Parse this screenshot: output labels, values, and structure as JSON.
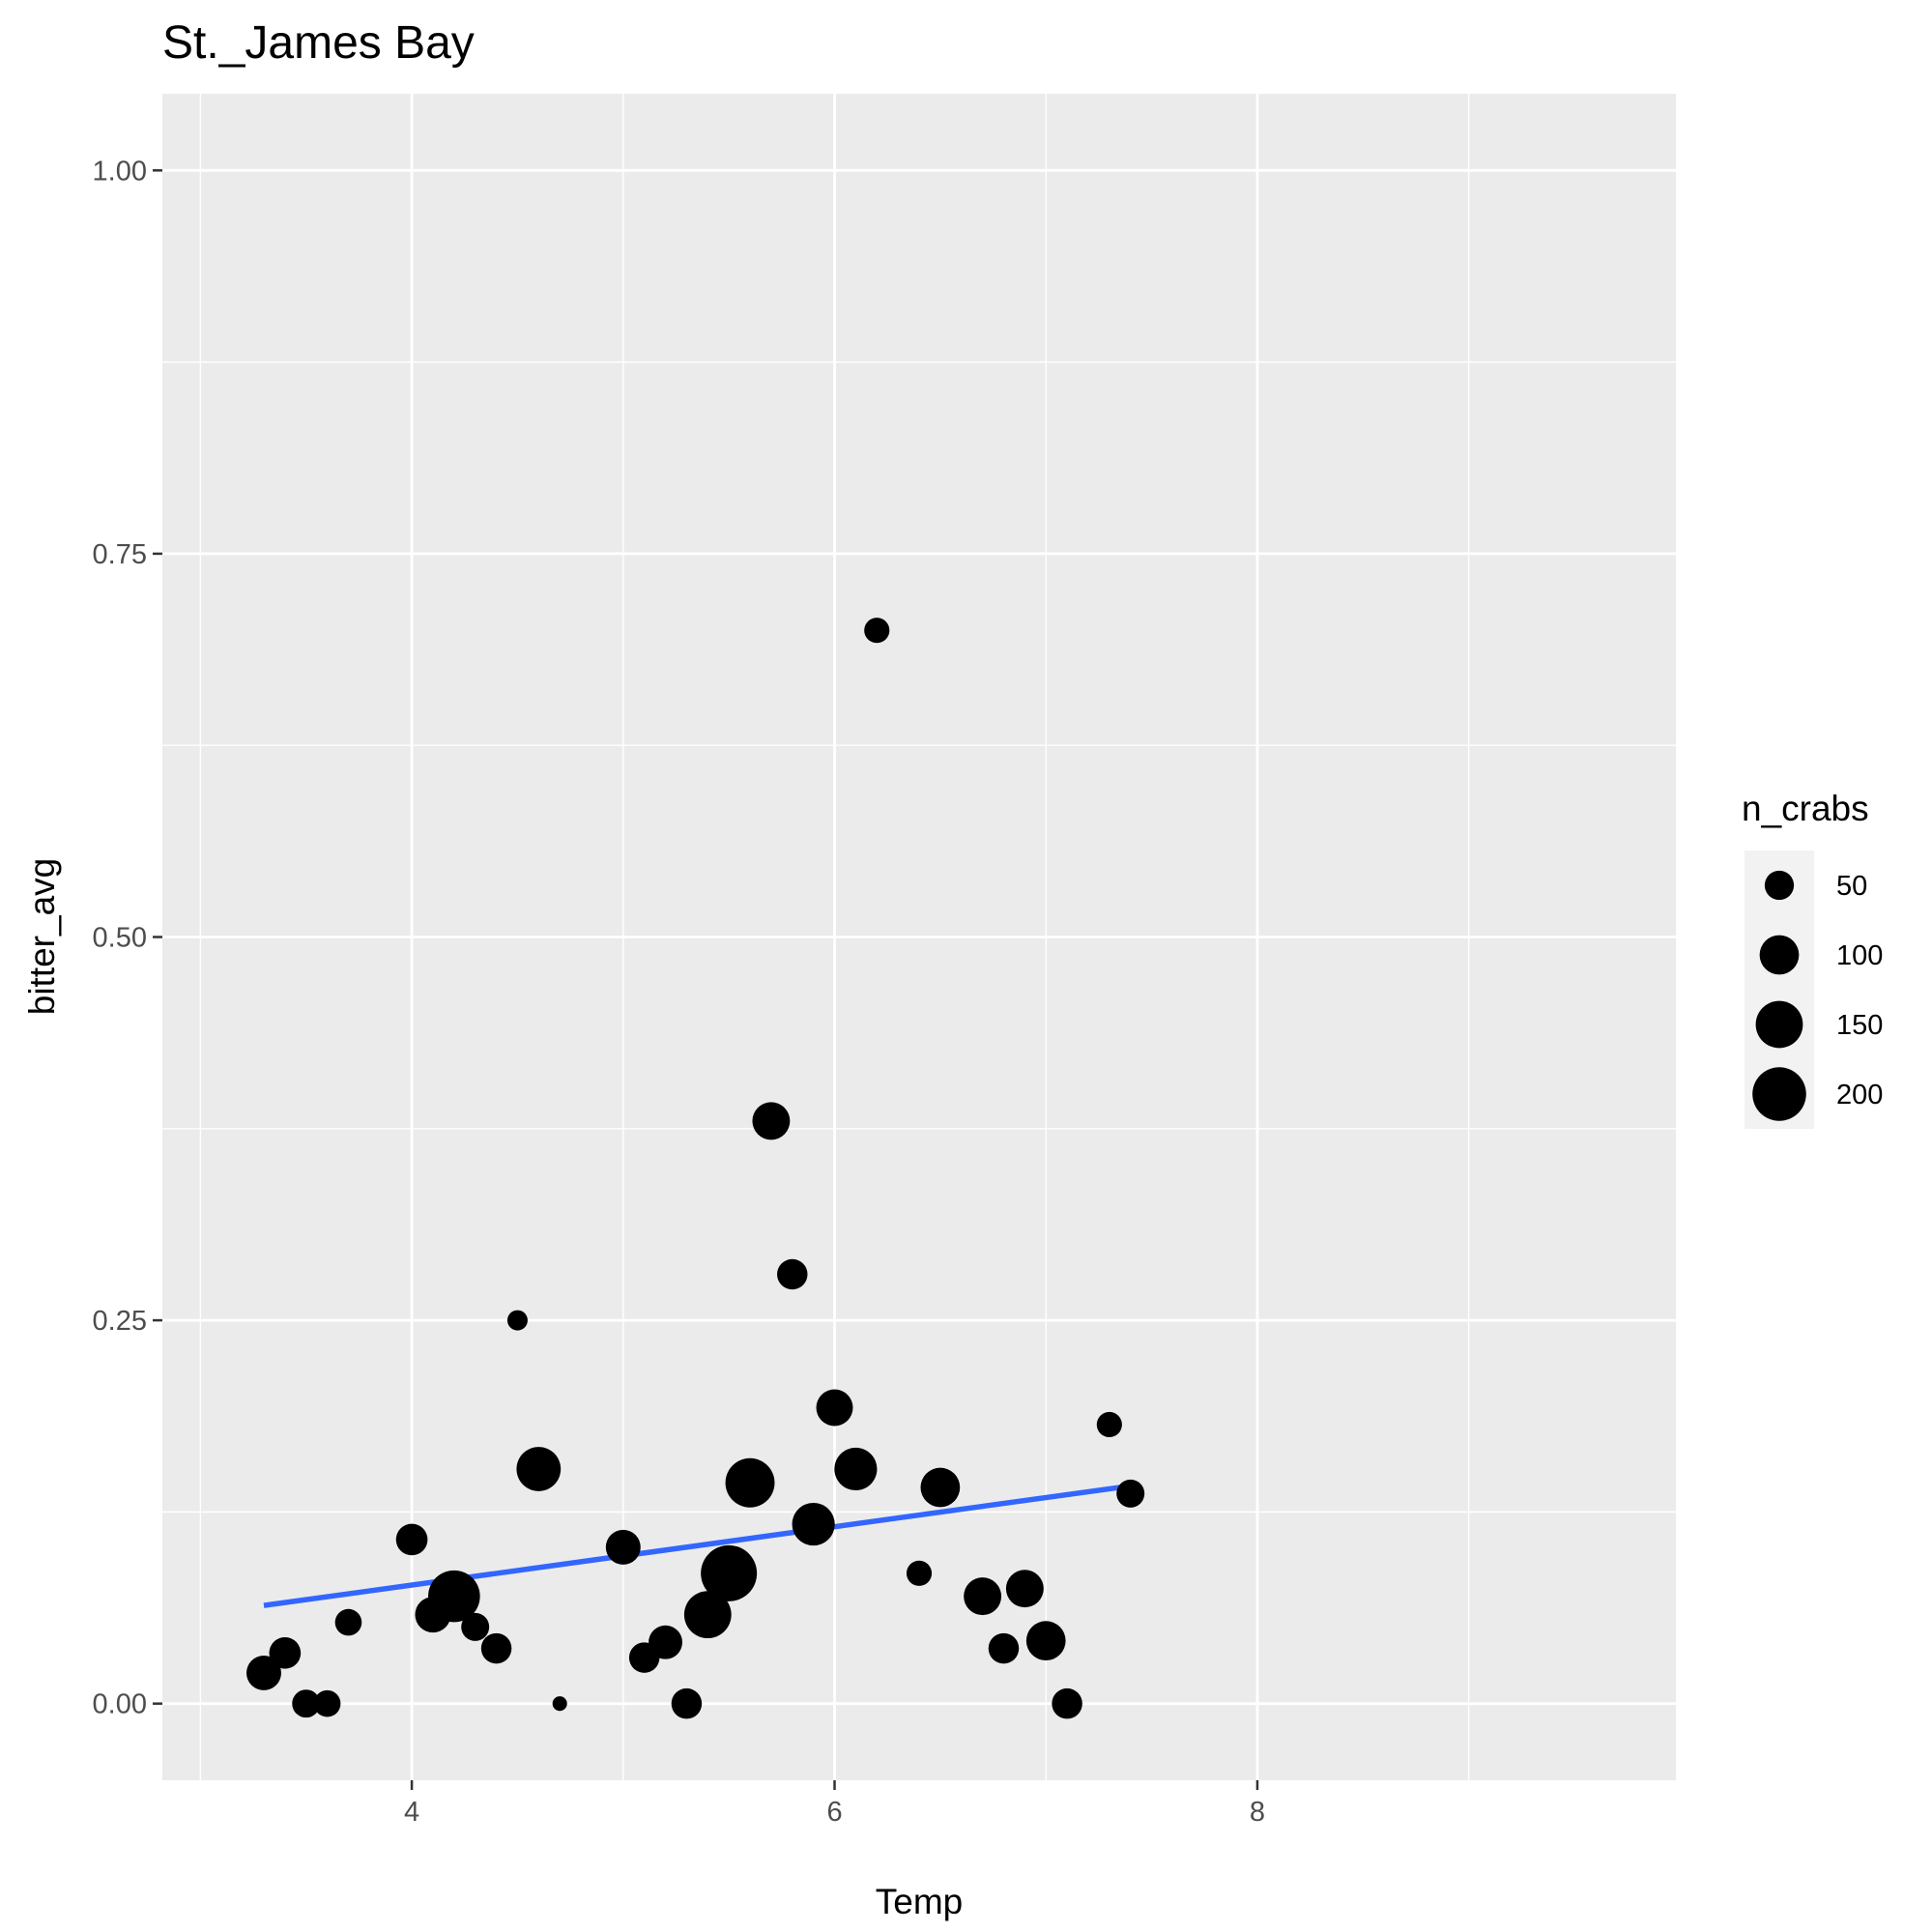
{
  "chart_data": {
    "type": "scatter",
    "title": "St._James Bay",
    "xlabel": "Temp",
    "ylabel": "bitter_avg",
    "xlim": [
      2.82,
      9.98
    ],
    "ylim": [
      -0.05,
      1.05
    ],
    "x_ticks": [
      4,
      6,
      8
    ],
    "x_tick_labels": [
      "4",
      "6",
      "8"
    ],
    "y_ticks": [
      0,
      0.25,
      0.5,
      0.75,
      1.0
    ],
    "y_tick_labels": [
      "0.00",
      "0.25",
      "0.50",
      "0.75",
      "1.00"
    ],
    "grid": true,
    "size_variable": "n_crabs",
    "legend": {
      "title": "n_crabs",
      "position": "right",
      "values": [
        50,
        100,
        150,
        200
      ],
      "labels": [
        "50",
        "100",
        "150",
        "200"
      ]
    },
    "point_color": "#000000",
    "points": [
      {
        "x": 3.3,
        "y": 0.02,
        "n": 75
      },
      {
        "x": 3.4,
        "y": 0.033,
        "n": 60
      },
      {
        "x": 3.5,
        "y": 0.0,
        "n": 45
      },
      {
        "x": 3.6,
        "y": 0.0,
        "n": 40
      },
      {
        "x": 3.7,
        "y": 0.053,
        "n": 40
      },
      {
        "x": 4.0,
        "y": 0.107,
        "n": 60
      },
      {
        "x": 4.1,
        "y": 0.058,
        "n": 80
      },
      {
        "x": 4.2,
        "y": 0.07,
        "n": 185
      },
      {
        "x": 4.3,
        "y": 0.05,
        "n": 45
      },
      {
        "x": 4.4,
        "y": 0.036,
        "n": 55
      },
      {
        "x": 4.5,
        "y": 0.25,
        "n": 20
      },
      {
        "x": 4.6,
        "y": 0.153,
        "n": 130
      },
      {
        "x": 4.7,
        "y": 0.0,
        "n": 8
      },
      {
        "x": 5.0,
        "y": 0.102,
        "n": 75
      },
      {
        "x": 5.1,
        "y": 0.03,
        "n": 55
      },
      {
        "x": 5.2,
        "y": 0.04,
        "n": 70
      },
      {
        "x": 5.3,
        "y": 0.0,
        "n": 55
      },
      {
        "x": 5.4,
        "y": 0.058,
        "n": 150
      },
      {
        "x": 5.5,
        "y": 0.085,
        "n": 220
      },
      {
        "x": 5.6,
        "y": 0.144,
        "n": 165
      },
      {
        "x": 5.7,
        "y": 0.38,
        "n": 90
      },
      {
        "x": 5.8,
        "y": 0.28,
        "n": 55
      },
      {
        "x": 5.9,
        "y": 0.117,
        "n": 120
      },
      {
        "x": 6.0,
        "y": 0.193,
        "n": 85
      },
      {
        "x": 6.1,
        "y": 0.153,
        "n": 120
      },
      {
        "x": 6.2,
        "y": 0.7,
        "n": 35
      },
      {
        "x": 6.4,
        "y": 0.085,
        "n": 35
      },
      {
        "x": 6.5,
        "y": 0.141,
        "n": 100
      },
      {
        "x": 6.7,
        "y": 0.07,
        "n": 90
      },
      {
        "x": 6.8,
        "y": 0.036,
        "n": 55
      },
      {
        "x": 6.9,
        "y": 0.075,
        "n": 90
      },
      {
        "x": 7.0,
        "y": 0.041,
        "n": 100
      },
      {
        "x": 7.1,
        "y": 0.0,
        "n": 55
      },
      {
        "x": 7.3,
        "y": 0.182,
        "n": 35
      },
      {
        "x": 7.4,
        "y": 0.137,
        "n": 45
      }
    ],
    "trend_line": {
      "method": "linear",
      "color": "#3366ff",
      "x": [
        3.3,
        7.4
      ],
      "y": [
        0.064,
        0.142
      ]
    }
  }
}
